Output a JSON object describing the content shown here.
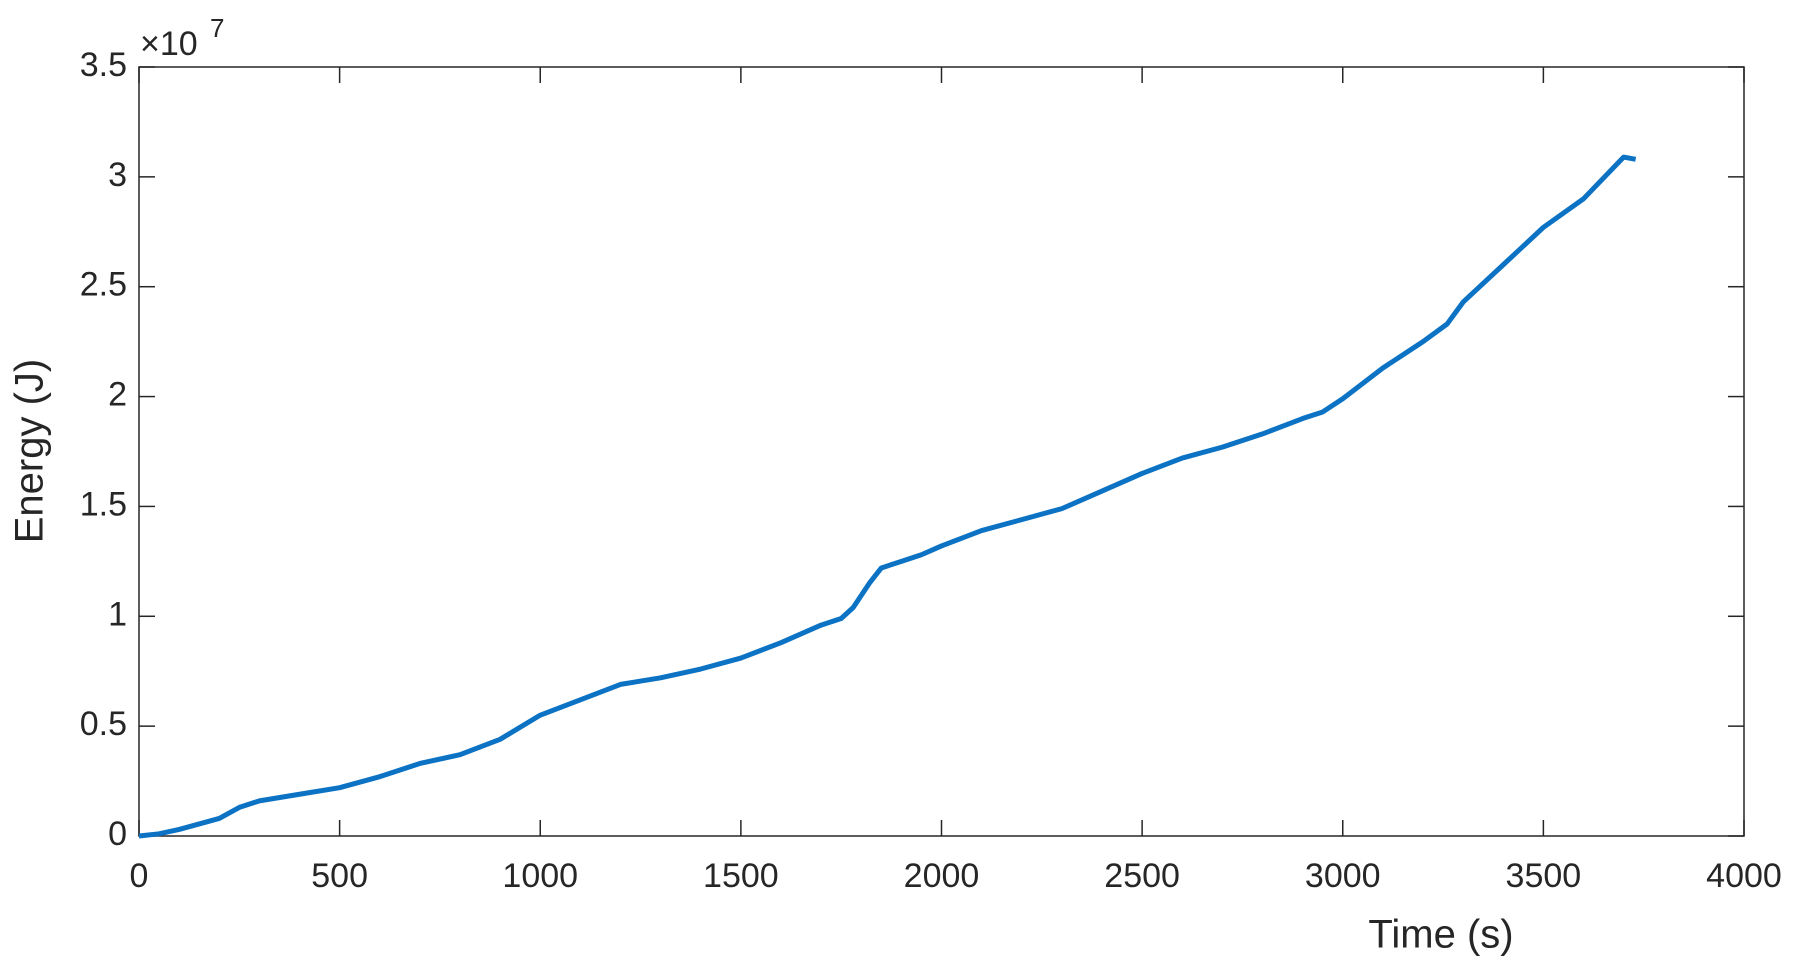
{
  "chart_data": {
    "type": "line",
    "x_label": "Time (s)",
    "y_label": "Energy (J)",
    "y_exponent_base": "×10",
    "y_exponent": "7",
    "x": [
      0,
      50,
      100,
      200,
      250,
      300,
      400,
      500,
      600,
      700,
      800,
      900,
      1000,
      1100,
      1200,
      1300,
      1400,
      1500,
      1600,
      1700,
      1750,
      1780,
      1820,
      1850,
      1900,
      1950,
      2000,
      2100,
      2200,
      2300,
      2400,
      2500,
      2600,
      2700,
      2800,
      2900,
      2950,
      3000,
      3100,
      3200,
      3260,
      3300,
      3400,
      3500,
      3600,
      3700,
      3730
    ],
    "values": [
      0,
      0.01,
      0.03,
      0.08,
      0.13,
      0.16,
      0.19,
      0.22,
      0.27,
      0.33,
      0.37,
      0.44,
      0.55,
      0.62,
      0.69,
      0.72,
      0.76,
      0.81,
      0.88,
      0.96,
      0.99,
      1.04,
      1.15,
      1.22,
      1.25,
      1.28,
      1.32,
      1.39,
      1.44,
      1.49,
      1.57,
      1.65,
      1.72,
      1.77,
      1.83,
      1.9,
      1.93,
      1.99,
      2.13,
      2.25,
      2.33,
      2.43,
      2.6,
      2.77,
      2.9,
      3.09,
      3.08
    ],
    "color": "#0b72c4",
    "xlim": [
      0,
      4000
    ],
    "xticks": [
      0,
      500,
      1000,
      1500,
      2000,
      2500,
      3000,
      3500,
      4000
    ],
    "ylim": [
      0,
      3.5
    ],
    "yticks": [
      0,
      0.5,
      1,
      1.5,
      2,
      2.5,
      3,
      3.5
    ],
    "grid": false
  }
}
